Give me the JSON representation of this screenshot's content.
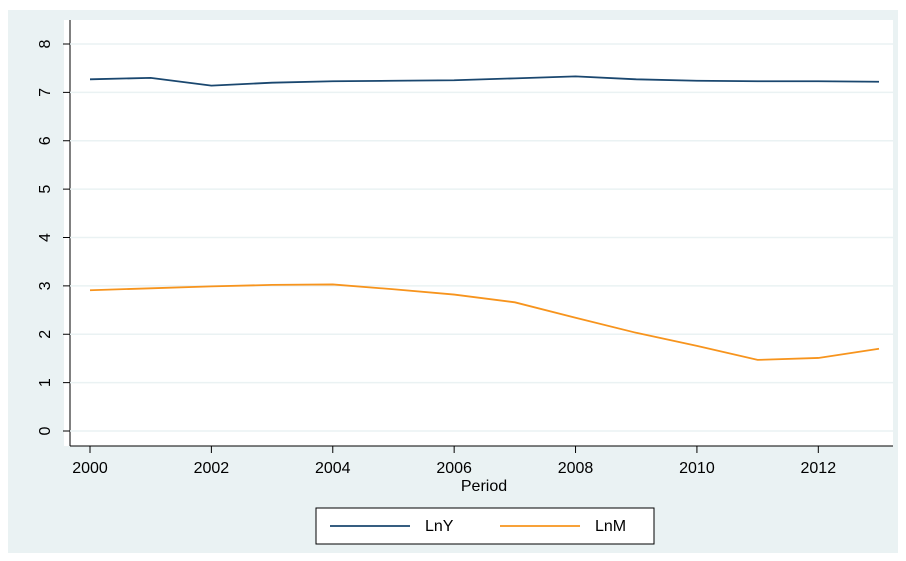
{
  "chart_data": {
    "type": "line",
    "x_label": "Period",
    "x": [
      2000,
      2001,
      2002,
      2003,
      2004,
      2005,
      2006,
      2007,
      2008,
      2009,
      2010,
      2011,
      2012,
      2013
    ],
    "series": [
      {
        "name": "LnY",
        "color": "#1a476f",
        "values": [
          7.27,
          7.3,
          7.14,
          7.2,
          7.23,
          7.24,
          7.25,
          7.29,
          7.33,
          7.27,
          7.24,
          7.23,
          7.23,
          7.22
        ]
      },
      {
        "name": "LnM",
        "color": "#f7941d",
        "values": [
          2.91,
          2.95,
          2.99,
          3.02,
          3.03,
          2.93,
          2.82,
          2.66,
          2.34,
          2.03,
          1.76,
          1.47,
          1.51,
          1.7
        ]
      }
    ],
    "xlim": [
      2000,
      2013
    ],
    "xticks": [
      2000,
      2002,
      2004,
      2006,
      2008,
      2010,
      2012
    ],
    "ylim": [
      0,
      8
    ],
    "yticks": [
      0,
      1,
      2,
      3,
      4,
      5,
      6,
      7,
      8
    ],
    "grid": true,
    "legend": "bottom"
  }
}
